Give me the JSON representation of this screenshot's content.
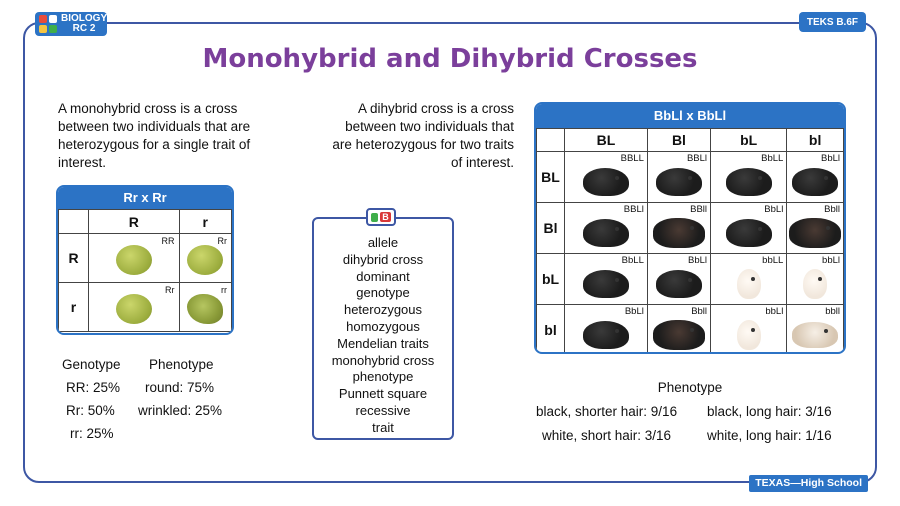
{
  "header": {
    "badge_line1": "BIOLOGY",
    "badge_line2": "RC 2",
    "teks": "TEKS B.6F",
    "title": "Monohybrid and Dihybrid Crosses"
  },
  "monohybrid": {
    "description": "A monohybrid cross is a cross between two individuals that are heterozygous for a single trait of interest.",
    "square": {
      "title": "Rr x Rr",
      "columns": [
        "R",
        "r"
      ],
      "rows": [
        {
          "label": "R",
          "cells": [
            {
              "genotype": "RR",
              "type": "round"
            },
            {
              "genotype": "Rr",
              "type": "round"
            }
          ]
        },
        {
          "label": "r",
          "cells": [
            {
              "genotype": "Rr",
              "type": "round"
            },
            {
              "genotype": "rr",
              "type": "wrinkled"
            }
          ]
        }
      ]
    },
    "genotype_header": "Genotype",
    "phenotype_header": "Phenotype",
    "genotypes": [
      "RR: 25%",
      "Rr: 50%",
      "rr: 25%"
    ],
    "phenotypes": [
      "round: 75%",
      "wrinkled: 25%"
    ]
  },
  "word_bank": {
    "icon": "word-bank-icon",
    "words": [
      "allele",
      "dihybrid cross",
      "dominant",
      "genotype",
      "heterozygous",
      "homozygous",
      "Mendelian traits",
      "monohybrid cross",
      "phenotype",
      "Punnett square",
      "recessive",
      "trait"
    ]
  },
  "dihybrid": {
    "description": "A dihybrid cross is a cross between two individuals that are heterozygous for two traits of interest.",
    "square": {
      "title": "BbLl x BbLl",
      "columns": [
        "BL",
        "Bl",
        "bL",
        "bl"
      ],
      "rows": [
        {
          "label": "BL",
          "cells": [
            {
              "genotype": "BBLL",
              "color": "black",
              "hair": "short"
            },
            {
              "genotype": "BBLl",
              "color": "black",
              "hair": "short"
            },
            {
              "genotype": "BbLL",
              "color": "black",
              "hair": "short"
            },
            {
              "genotype": "BbLl",
              "color": "black",
              "hair": "short"
            }
          ]
        },
        {
          "label": "Bl",
          "cells": [
            {
              "genotype": "BBLl",
              "color": "black",
              "hair": "short"
            },
            {
              "genotype": "BBll",
              "color": "black",
              "hair": "long"
            },
            {
              "genotype": "BbLl",
              "color": "black",
              "hair": "short"
            },
            {
              "genotype": "Bbll",
              "color": "black",
              "hair": "long"
            }
          ]
        },
        {
          "label": "bL",
          "cells": [
            {
              "genotype": "BbLL",
              "color": "black",
              "hair": "short"
            },
            {
              "genotype": "BbLl",
              "color": "black",
              "hair": "short"
            },
            {
              "genotype": "bbLL",
              "color": "white",
              "hair": "short"
            },
            {
              "genotype": "bbLl",
              "color": "white",
              "hair": "short"
            }
          ]
        },
        {
          "label": "bl",
          "cells": [
            {
              "genotype": "BbLl",
              "color": "black",
              "hair": "short"
            },
            {
              "genotype": "Bbll",
              "color": "black",
              "hair": "long"
            },
            {
              "genotype": "bbLl",
              "color": "white",
              "hair": "short"
            },
            {
              "genotype": "bbll",
              "color": "white",
              "hair": "long"
            }
          ]
        }
      ]
    },
    "phenotype_header": "Phenotype",
    "phenotypes": [
      "black, shorter hair: 9/16",
      "black, long hair: 3/16",
      "white, short hair: 3/16",
      "white, long hair: 1/16"
    ]
  },
  "footer": "TEXAS—High School",
  "colors": {
    "frame": "#3d57a4",
    "accent_blue": "#2c73c5",
    "title_purple": "#7b3f9b",
    "pea_green": "#a7b84a",
    "pig_black": "#1c1c1c",
    "pig_white": "#f1e7dc"
  }
}
